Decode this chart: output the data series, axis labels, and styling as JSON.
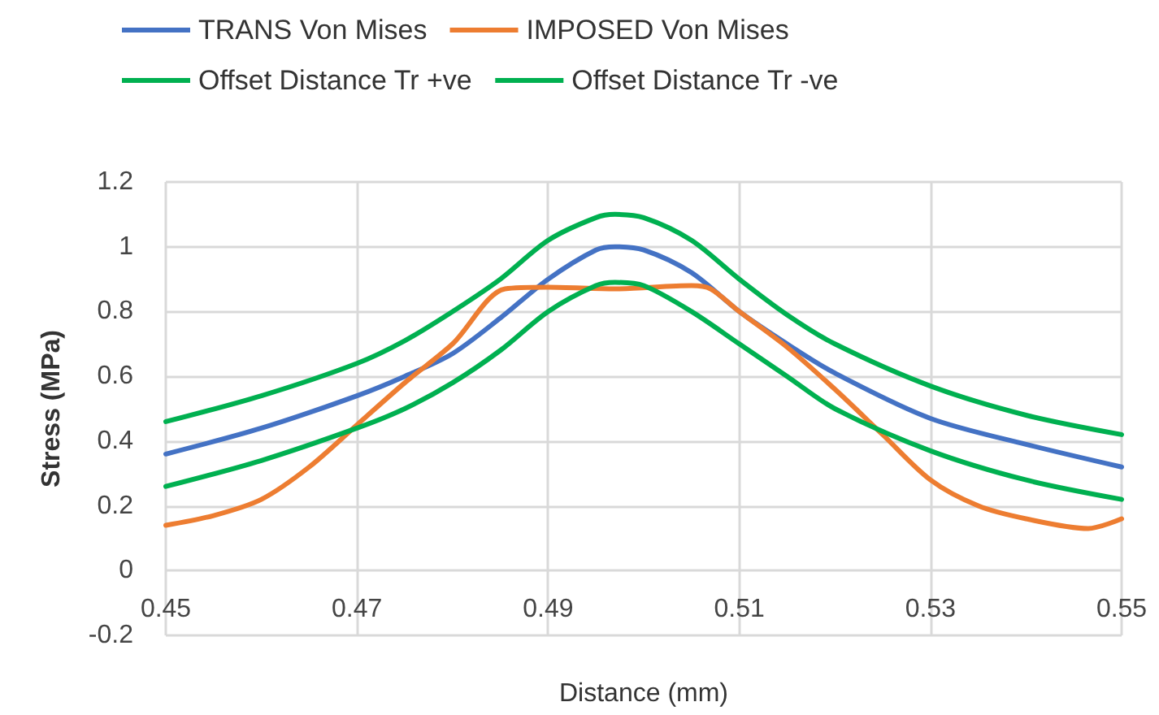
{
  "chart_data": {
    "type": "line",
    "xlabel": "Distance (mm)",
    "ylabel": "Stress (MPa)",
    "xlim": [
      0.45,
      0.55
    ],
    "xticks": [
      0.45,
      0.47,
      0.49,
      0.51,
      0.53,
      0.55
    ],
    "ylim": [
      -0.2,
      1.2
    ],
    "yticks": [
      -0.2,
      0,
      0.2,
      0.4,
      0.6,
      0.8,
      1,
      1.2
    ],
    "grid": true,
    "legend": "top",
    "marker": "none",
    "line_style": "solid",
    "series": [
      {
        "name": "TRANS Von Mises",
        "color": "#4472c4",
        "x": [
          0.45,
          0.46,
          0.47,
          0.475,
          0.48,
          0.485,
          0.49,
          0.495,
          0.497,
          0.5,
          0.505,
          0.51,
          0.515,
          0.52,
          0.53,
          0.54,
          0.55
        ],
        "values": [
          0.36,
          0.44,
          0.54,
          0.6,
          0.67,
          0.78,
          0.9,
          0.99,
          1.0,
          0.99,
          0.92,
          0.8,
          0.7,
          0.61,
          0.47,
          0.39,
          0.32
        ]
      },
      {
        "name": "IMPOSED Von Mises",
        "color": "#ed7d31",
        "x": [
          0.45,
          0.455,
          0.46,
          0.465,
          0.47,
          0.475,
          0.48,
          0.4855,
          0.49,
          0.497,
          0.505,
          0.507,
          0.51,
          0.515,
          0.52,
          0.525,
          0.53,
          0.535,
          0.54,
          0.5465,
          0.55
        ],
        "values": [
          0.14,
          0.17,
          0.22,
          0.32,
          0.45,
          0.58,
          0.7,
          0.87,
          0.875,
          0.87,
          0.88,
          0.87,
          0.8,
          0.69,
          0.56,
          0.42,
          0.28,
          0.2,
          0.16,
          0.13,
          0.16
        ]
      },
      {
        "name": "Offset Distance Tr +ve",
        "color": "#00b050",
        "x": [
          0.45,
          0.46,
          0.47,
          0.475,
          0.48,
          0.485,
          0.49,
          0.495,
          0.497,
          0.5,
          0.505,
          0.51,
          0.515,
          0.52,
          0.53,
          0.54,
          0.55
        ],
        "values": [
          0.46,
          0.54,
          0.64,
          0.71,
          0.8,
          0.9,
          1.02,
          1.09,
          1.1,
          1.09,
          1.02,
          0.9,
          0.79,
          0.7,
          0.57,
          0.48,
          0.42
        ]
      },
      {
        "name": "Offset Distance Tr -ve",
        "color": "#00b050",
        "x": [
          0.45,
          0.46,
          0.47,
          0.475,
          0.48,
          0.485,
          0.49,
          0.495,
          0.497,
          0.5,
          0.505,
          0.51,
          0.515,
          0.52,
          0.53,
          0.54,
          0.55
        ],
        "values": [
          0.26,
          0.34,
          0.44,
          0.5,
          0.58,
          0.68,
          0.8,
          0.88,
          0.89,
          0.88,
          0.8,
          0.7,
          0.6,
          0.5,
          0.37,
          0.28,
          0.22
        ]
      }
    ]
  }
}
